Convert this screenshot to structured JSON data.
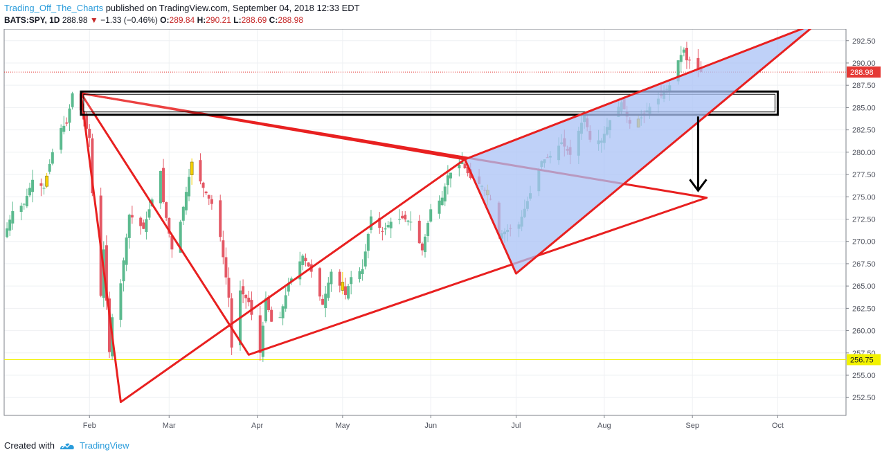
{
  "header": {
    "author": "Trading_Off_The_Charts",
    "published_text": "published on TradingView.com, September 04, 2018 12:33 EDT"
  },
  "quote": {
    "symbol": "BATS:SPY, 1D",
    "last": "288.98",
    "direction_icon": "triangle-down",
    "change": "−1.33 (−0.46%)",
    "o_label": "O:",
    "o": "289.84",
    "h_label": "H:",
    "h": "290.21",
    "l_label": "L:",
    "l": "288.69",
    "c_label": "C:",
    "c": "288.98"
  },
  "footer": {
    "created_with": "Created with",
    "brand": "TradingView"
  },
  "colors": {
    "up": "#5cba8f",
    "down": "#e45865",
    "highlight": "#f5d000",
    "drawing_line": "#e82020",
    "wedge_fill": "#a9c2f5",
    "price_line": "#e53935",
    "level_line": "#f2f200"
  },
  "chart_data": {
    "type": "candlestick",
    "symbol": "BATS:SPY",
    "interval": "1D",
    "y_axis_side": "right",
    "ylim": [
      250.5,
      293.8
    ],
    "y_ticks": [
      "292.50",
      "290.00",
      "287.50",
      "285.00",
      "282.50",
      "280.00",
      "277.50",
      "275.00",
      "272.50",
      "270.00",
      "267.50",
      "265.00",
      "262.50",
      "260.00",
      "257.50",
      "255.00",
      "252.50"
    ],
    "x_ticks": [
      {
        "label": "Feb",
        "date": "2018-02-01"
      },
      {
        "label": "Mar",
        "date": "2018-03-01"
      },
      {
        "label": "Apr",
        "date": "2018-04-01"
      },
      {
        "label": "May",
        "date": "2018-05-01"
      },
      {
        "label": "Jun",
        "date": "2018-06-01"
      },
      {
        "label": "Jul",
        "date": "2018-07-01"
      },
      {
        "label": "Aug",
        "date": "2018-08-01"
      },
      {
        "label": "Sep",
        "date": "2018-09-01"
      },
      {
        "label": "Oct",
        "date": "2018-10-01"
      }
    ],
    "x_range": [
      "2018-01-02",
      "2018-10-25"
    ],
    "current_price": {
      "label": "288.98",
      "value": 288.98
    },
    "horizontal_level": {
      "label": "256.75",
      "value": 256.75
    },
    "close_points": [
      [
        "2018-01-02",
        270.5
      ],
      [
        "2018-01-05",
        273.4
      ],
      [
        "2018-01-09",
        274.2
      ],
      [
        "2018-01-12",
        276.9
      ],
      [
        "2018-01-16",
        276.0
      ],
      [
        "2018-01-19",
        280.0
      ],
      [
        "2018-01-22",
        282.7
      ],
      [
        "2018-01-24",
        283.2
      ],
      [
        "2018-01-26",
        286.6
      ],
      [
        "2018-01-29",
        284.7
      ],
      [
        "2018-02-01",
        281.6
      ],
      [
        "2018-02-02",
        275.4
      ],
      [
        "2018-02-05",
        263.9
      ],
      [
        "2018-02-06",
        269.1
      ],
      [
        "2018-02-08",
        257.6
      ],
      [
        "2018-02-09",
        261.5
      ],
      [
        "2018-02-12",
        265.3
      ],
      [
        "2018-02-15",
        273.0
      ],
      [
        "2018-02-20",
        271.4
      ],
      [
        "2018-02-23",
        274.7
      ],
      [
        "2018-02-26",
        277.9
      ],
      [
        "2018-02-27",
        274.4
      ],
      [
        "2018-03-02",
        269.1
      ],
      [
        "2018-03-05",
        272.2
      ],
      [
        "2018-03-09",
        278.9
      ],
      [
        "2018-03-13",
        276.0
      ],
      [
        "2018-03-16",
        274.2
      ],
      [
        "2018-03-19",
        270.5
      ],
      [
        "2018-03-22",
        263.7
      ],
      [
        "2018-03-23",
        258.1
      ],
      [
        "2018-03-26",
        264.5
      ],
      [
        "2018-03-29",
        263.2
      ],
      [
        "2018-04-02",
        257.5
      ],
      [
        "2018-04-04",
        263.6
      ],
      [
        "2018-04-06",
        261.0
      ],
      [
        "2018-04-09",
        261.5
      ],
      [
        "2018-04-12",
        265.2
      ],
      [
        "2018-04-17",
        268.4
      ],
      [
        "2018-04-20",
        266.6
      ],
      [
        "2018-04-24",
        262.9
      ],
      [
        "2018-04-27",
        266.6
      ],
      [
        "2018-05-02",
        264.0
      ],
      [
        "2018-05-04",
        266.0
      ],
      [
        "2018-05-08",
        266.9
      ],
      [
        "2018-05-11",
        272.8
      ],
      [
        "2018-05-15",
        271.1
      ],
      [
        "2018-05-18",
        272.2
      ],
      [
        "2018-05-22",
        272.6
      ],
      [
        "2018-05-25",
        272.2
      ],
      [
        "2018-05-29",
        269.0
      ],
      [
        "2018-06-01",
        273.6
      ],
      [
        "2018-06-05",
        274.9
      ],
      [
        "2018-06-07",
        277.4
      ],
      [
        "2018-06-12",
        278.9
      ],
      [
        "2018-06-13",
        278.2
      ],
      [
        "2018-06-15",
        277.1
      ],
      [
        "2018-06-19",
        276.2
      ],
      [
        "2018-06-22",
        274.7
      ],
      [
        "2018-06-25",
        270.7
      ],
      [
        "2018-06-28",
        271.3
      ],
      [
        "2018-07-02",
        271.9
      ],
      [
        "2018-07-06",
        275.4
      ],
      [
        "2018-07-10",
        279.0
      ],
      [
        "2018-07-13",
        279.6
      ],
      [
        "2018-07-17",
        281.1
      ],
      [
        "2018-07-20",
        279.7
      ],
      [
        "2018-07-25",
        284.2
      ],
      [
        "2018-07-27",
        281.4
      ],
      [
        "2018-07-31",
        281.3
      ],
      [
        "2018-08-03",
        283.6
      ],
      [
        "2018-08-07",
        285.6
      ],
      [
        "2018-08-10",
        283.2
      ],
      [
        "2018-08-14",
        283.9
      ],
      [
        "2018-08-17",
        285.1
      ],
      [
        "2018-08-21",
        286.3
      ],
      [
        "2018-08-24",
        287.5
      ],
      [
        "2018-08-27",
        290.3
      ],
      [
        "2018-08-29",
        291.5
      ],
      [
        "2018-08-30",
        290.3
      ],
      [
        "2018-08-31",
        290.3
      ],
      [
        "2018-09-04",
        288.98
      ]
    ],
    "drawings": [
      {
        "type": "triangle",
        "color": "#e82020",
        "points": [
          [
            "2018-01-29",
            286.6
          ],
          [
            "2018-02-12",
            252.0
          ],
          [
            "2018-06-13",
            279.2
          ]
        ]
      },
      {
        "type": "triangle",
        "color": "#e82020",
        "points": [
          [
            "2018-01-29",
            286.6
          ],
          [
            "2018-09-06",
            274.9
          ],
          [
            "2018-03-29",
            257.3
          ]
        ]
      },
      {
        "type": "rectangle",
        "color": "#000000",
        "points": [
          [
            "2018-01-29",
            286.8
          ],
          [
            "2018-10-01",
            284.2
          ]
        ]
      },
      {
        "type": "rising_wedge",
        "color": "#e82020",
        "fill": "#a9c2f5",
        "points": [
          [
            "2018-06-13",
            279.2
          ],
          [
            "2018-10-15",
            294.5
          ],
          [
            "2018-07-01",
            266.4
          ]
        ]
      },
      {
        "type": "arrow",
        "color": "#000000",
        "points": [
          [
            "2018-09-03",
            284.0
          ],
          [
            "2018-09-03",
            275.7
          ]
        ]
      }
    ]
  }
}
